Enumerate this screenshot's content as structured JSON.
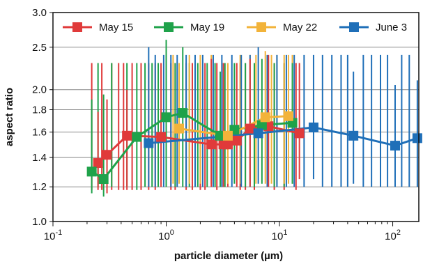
{
  "chart_data": {
    "type": "line",
    "title": "",
    "xlabel": "particle diameter (µm)",
    "ylabel": "aspect ratio",
    "xscale": "log",
    "yscale": "log",
    "xlim": [
      0.1,
      170
    ],
    "ylim": [
      1.0,
      3.0
    ],
    "grid": "horizontal",
    "legend_position": "top",
    "x_ticks": [
      {
        "value": 0.1,
        "base": "10",
        "exp": "-1"
      },
      {
        "value": 1,
        "base": "10",
        "exp": "0"
      },
      {
        "value": 10,
        "base": "10",
        "exp": "1"
      },
      {
        "value": 100,
        "base": "10",
        "exp": "2"
      }
    ],
    "y_ticks": [
      {
        "value": 1.0,
        "label": "1.0"
      },
      {
        "value": 1.2,
        "label": "1.2"
      },
      {
        "value": 1.4,
        "label": "1.4"
      },
      {
        "value": 1.6,
        "label": "1.6"
      },
      {
        "value": 1.8,
        "label": "1.8"
      },
      {
        "value": 2.0,
        "label": "2.0"
      },
      {
        "value": 2.5,
        "label": "2.5"
      },
      {
        "value": 3.0,
        "label": "3.0"
      }
    ],
    "series": [
      {
        "name": "May 15",
        "color": "#e03a3a",
        "points": [
          {
            "x": 0.25,
            "y": 1.36,
            "low": 1.18,
            "high": 1.78
          },
          {
            "x": 0.3,
            "y": 1.42,
            "low": 1.16,
            "high": 1.9
          },
          {
            "x": 0.45,
            "y": 1.57,
            "low": 1.18,
            "high": 2.0
          },
          {
            "x": 0.9,
            "y": 1.56,
            "low": 1.2,
            "high": 2.3
          },
          {
            "x": 2.5,
            "y": 1.5,
            "low": 1.2,
            "high": 2.35
          },
          {
            "x": 3.2,
            "y": 1.5,
            "low": 1.2,
            "high": 2.3
          },
          {
            "x": 3.5,
            "y": 1.5,
            "low": 1.2,
            "high": 2.3
          },
          {
            "x": 4.2,
            "y": 1.53,
            "low": 1.2,
            "high": 2.3
          },
          {
            "x": 5.5,
            "y": 1.63,
            "low": 1.2,
            "high": 2.35
          },
          {
            "x": 8.0,
            "y": 1.65,
            "low": 1.2,
            "high": 2.4
          },
          {
            "x": 15.0,
            "y": 1.59,
            "low": 1.25,
            "high": 2.3
          }
        ]
      },
      {
        "name": "May 19",
        "color": "#1fa24a",
        "points": [
          {
            "x": 0.22,
            "y": 1.3,
            "low": 1.16,
            "high": 1.9
          },
          {
            "x": 0.28,
            "y": 1.25,
            "low": 1.14,
            "high": 1.95
          },
          {
            "x": 0.55,
            "y": 1.56,
            "low": 1.18,
            "high": 2.3
          },
          {
            "x": 1.0,
            "y": 1.73,
            "low": 1.2,
            "high": 2.6
          },
          {
            "x": 1.4,
            "y": 1.77,
            "low": 1.2,
            "high": 2.5
          },
          {
            "x": 3.0,
            "y": 1.57,
            "low": 1.2,
            "high": 2.2
          },
          {
            "x": 4.0,
            "y": 1.62,
            "low": 1.22,
            "high": 2.3
          },
          {
            "x": 7.0,
            "y": 1.66,
            "low": 1.22,
            "high": 2.35
          },
          {
            "x": 13.0,
            "y": 1.68,
            "low": 1.22,
            "high": 2.3
          }
        ]
      },
      {
        "name": "May 22",
        "color": "#f2b33a",
        "points": [
          {
            "x": 1.3,
            "y": 1.63,
            "low": 1.22,
            "high": 2.3
          },
          {
            "x": 3.5,
            "y": 1.57,
            "low": 1.22,
            "high": 2.3
          },
          {
            "x": 7.5,
            "y": 1.73,
            "low": 1.22,
            "high": 2.45
          },
          {
            "x": 12.0,
            "y": 1.74,
            "low": 1.22,
            "high": 2.4
          }
        ]
      },
      {
        "name": "June 3",
        "color": "#1f6fb8",
        "points": [
          {
            "x": 0.7,
            "y": 1.51,
            "low": 1.2,
            "high": 2.5
          },
          {
            "x": 6.5,
            "y": 1.59,
            "low": 1.22,
            "high": 2.5
          },
          {
            "x": 20.0,
            "y": 1.64,
            "low": 1.25,
            "high": 2.4
          },
          {
            "x": 45.0,
            "y": 1.57,
            "low": 1.22,
            "high": 2.2
          },
          {
            "x": 105.0,
            "y": 1.49,
            "low": 1.2,
            "high": 2.05
          },
          {
            "x": 165.0,
            "y": 1.55,
            "low": 1.2,
            "high": 2.1
          }
        ]
      }
    ],
    "unmarked_error_bars": [
      {
        "color": "#e03a3a",
        "x": [
          0.22,
          0.27,
          0.33,
          0.38,
          0.42,
          0.5,
          0.6,
          0.7,
          0.8,
          1.1,
          1.2,
          1.5,
          1.7,
          2.0,
          2.2,
          2.8,
          4.5,
          5.0,
          6.0,
          9.0,
          11.0,
          14.0
        ],
        "low": 1.18,
        "high": 2.3
      },
      {
        "color": "#1fa24a",
        "x": [
          0.25,
          0.33,
          0.45,
          0.65,
          0.75,
          0.85,
          1.2,
          1.6,
          1.9,
          2.3,
          2.7,
          3.3,
          5.0,
          6.0,
          9.0,
          11.0
        ],
        "low": 1.2,
        "high": 2.3
      },
      {
        "color": "#f2b33a",
        "x": [
          1.15,
          1.6,
          2.0,
          2.5,
          4.5,
          5.5,
          6.2,
          8.5,
          9.5,
          11.0,
          13.0
        ],
        "low": 1.22,
        "high": 2.4
      },
      {
        "color": "#1f6fb8",
        "x": [
          0.8,
          0.95,
          1.1,
          1.25,
          1.5,
          1.8,
          2.1,
          2.6,
          3.1,
          3.8,
          4.6,
          5.5,
          7.8,
          9.5,
          11.5,
          13.5,
          16.5,
          24.0,
          29.0,
          35.0,
          40.0,
          55.0,
          65.0,
          78.0,
          90.0,
          120.0,
          140.0
        ],
        "low": 1.2,
        "high": 2.4
      }
    ]
  }
}
